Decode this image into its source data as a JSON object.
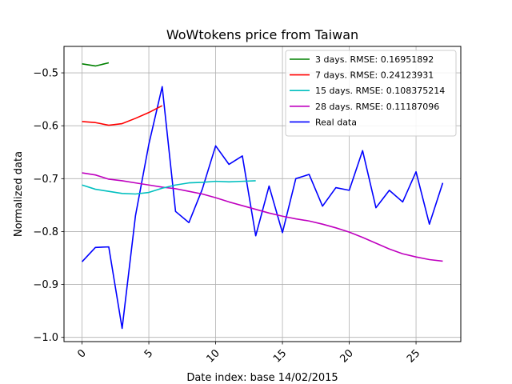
{
  "chart_data": {
    "type": "line",
    "title": "WoWtokens price from Taiwan",
    "xlabel": "Date index: base 14/02/2015",
    "ylabel": "Normalized data",
    "xlim": [
      -1.35,
      28.35
    ],
    "ylim": [
      -1.008,
      -0.45
    ],
    "xticks": [
      0,
      5,
      10,
      15,
      20,
      25
    ],
    "yticks": [
      -1.0,
      -0.9,
      -0.8,
      -0.7,
      -0.6,
      -0.5
    ],
    "ytick_labels": [
      "−1.0",
      "−0.9",
      "−0.8",
      "−0.7",
      "−0.6",
      "−0.5"
    ],
    "xtick_rotation": 45,
    "grid": true,
    "legend_position": "top-right",
    "series": [
      {
        "name": "3 days. RMSE: 0.16951892",
        "color": "#008000",
        "x": [
          0,
          1,
          2
        ],
        "y": [
          -0.483,
          -0.487,
          -0.481
        ]
      },
      {
        "name": "7 days. RMSE: 0.24123931",
        "color": "#ff0000",
        "x": [
          0,
          1,
          2,
          3,
          4,
          5,
          6
        ],
        "y": [
          -0.592,
          -0.594,
          -0.599,
          -0.596,
          -0.586,
          -0.575,
          -0.562
        ]
      },
      {
        "name": "15 days. RMSE: 0.108375214",
        "color": "#00bfbf",
        "x": [
          0,
          1,
          2,
          3,
          4,
          5,
          6,
          7,
          8,
          9,
          10,
          11,
          12,
          13
        ],
        "y": [
          -0.712,
          -0.72,
          -0.724,
          -0.728,
          -0.729,
          -0.726,
          -0.718,
          -0.712,
          -0.708,
          -0.707,
          -0.705,
          -0.706,
          -0.705,
          -0.704
        ]
      },
      {
        "name": "28 days. RMSE: 0.11187096",
        "color": "#bf00bf",
        "x": [
          0,
          1,
          2,
          3,
          4,
          5,
          6,
          7,
          8,
          9,
          10,
          11,
          12,
          13,
          14,
          15,
          16,
          17,
          18,
          19,
          20,
          21,
          22,
          23,
          24,
          25,
          26,
          27
        ],
        "y": [
          -0.689,
          -0.693,
          -0.701,
          -0.704,
          -0.708,
          -0.712,
          -0.716,
          -0.719,
          -0.724,
          -0.729,
          -0.736,
          -0.744,
          -0.751,
          -0.758,
          -0.765,
          -0.771,
          -0.776,
          -0.78,
          -0.786,
          -0.793,
          -0.801,
          -0.811,
          -0.822,
          -0.833,
          -0.842,
          -0.848,
          -0.853,
          -0.856
        ]
      },
      {
        "name": "Real data",
        "color": "#0000ff",
        "x": [
          0,
          1,
          2,
          3,
          4,
          5,
          6,
          7,
          8,
          9,
          10,
          11,
          12,
          13,
          14,
          15,
          16,
          17,
          18,
          19,
          20,
          21,
          22,
          23,
          24,
          25,
          26,
          27
        ],
        "y": [
          -0.857,
          -0.83,
          -0.829,
          -0.983,
          -0.77,
          -0.635,
          -0.526,
          -0.762,
          -0.783,
          -0.72,
          -0.638,
          -0.673,
          -0.657,
          -0.808,
          -0.714,
          -0.802,
          -0.7,
          -0.692,
          -0.752,
          -0.717,
          -0.722,
          -0.647,
          -0.755,
          -0.722,
          -0.744,
          -0.687,
          -0.786,
          -0.708
        ]
      }
    ]
  }
}
